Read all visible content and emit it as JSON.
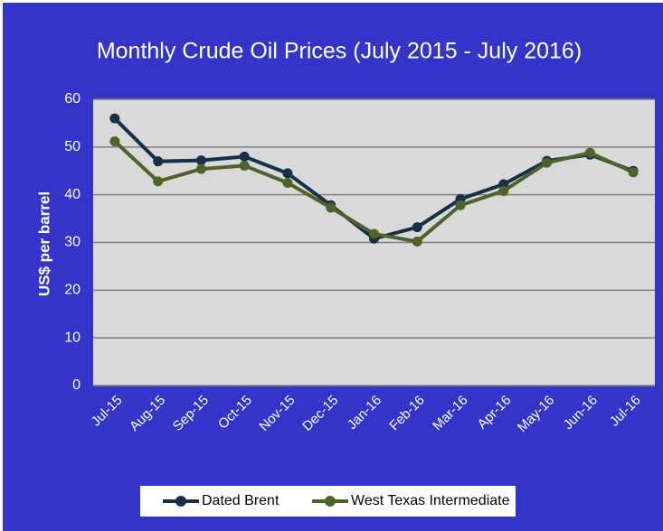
{
  "chart_data": {
    "type": "line",
    "title": "Monthly Crude Oil Prices (July 2015 - July 2016)",
    "y_label": "US$ per barrel",
    "categories": [
      "Jul-15",
      "Aug-15",
      "Sep-15",
      "Oct-15",
      "Nov-15",
      "Dec-15",
      "Jan-16",
      "Feb-16",
      "Mar-16",
      "Apr-16",
      "May-16",
      "Jun-16",
      "Jul-16"
    ],
    "series": [
      {
        "name": "Dated Brent",
        "color": "#17304a",
        "values": [
          56,
          47,
          47.2,
          48,
          44.5,
          37.8,
          30.8,
          33.2,
          39.1,
          42.2,
          47.1,
          48.4,
          45
        ]
      },
      {
        "name": "West Texas Intermediate",
        "color": "#4f6228",
        "values": [
          51.2,
          42.8,
          45.4,
          46.1,
          42.5,
          37.3,
          31.8,
          30.2,
          37.8,
          40.8,
          46.7,
          48.8,
          44.7
        ]
      }
    ],
    "ylim": [
      0,
      60
    ],
    "yticks": [
      0,
      10,
      20,
      30,
      40,
      50,
      60
    ],
    "grid": true,
    "legend": "bottom"
  }
}
